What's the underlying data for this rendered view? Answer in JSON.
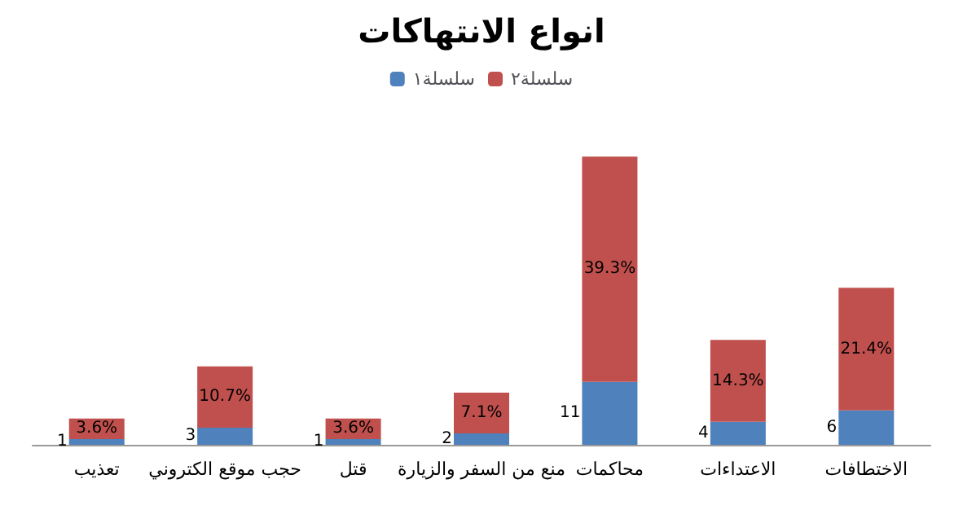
{
  "chart_data": {
    "type": "bar",
    "title": "انواع الانتهاكات",
    "stacked": true,
    "legend": "top",
    "tick_labels": "x",
    "categories": [
      "تعذيب",
      "حجب موقع الكتروني",
      "قتل",
      "منع من السفر والزيارة",
      "محاكمات",
      "الاعتداءات",
      "الاختطافات"
    ],
    "series": [
      {
        "name": "سلسلة١",
        "color": "#4f81bd",
        "values": [
          1,
          3,
          1,
          2,
          11,
          4,
          6
        ],
        "value_labels": [
          "1",
          "3",
          "1",
          "2",
          "11",
          "4",
          "6"
        ]
      },
      {
        "name": "سلسلة٢",
        "color": "#c0504d",
        "values": [
          3.6,
          10.7,
          3.6,
          7.1,
          39.3,
          14.3,
          21.4
        ],
        "value_labels": [
          "3.6%",
          "10.7%",
          "3.6%",
          "7.1%",
          "39.3%",
          "14.3%",
          "21.4%"
        ]
      }
    ]
  }
}
